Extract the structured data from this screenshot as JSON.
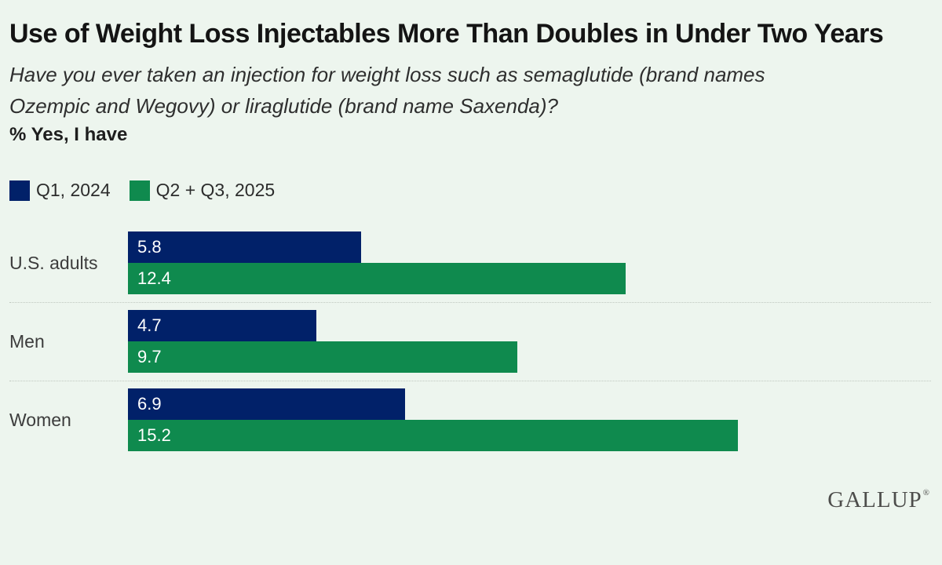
{
  "header": {
    "title": "Use of Weight Loss Injectables More Than Doubles in Under Two Years",
    "subtitle": "Have you ever taken an injection for weight loss such as semaglutide (brand names Ozempic and Wegovy) or liraglutide (brand name Saxenda)?",
    "metric_label": "% Yes, I have"
  },
  "legend": {
    "items": [
      {
        "label": "Q1, 2024",
        "color": "#012169"
      },
      {
        "label": "Q2 + Q3, 2025",
        "color": "#0f8a4e"
      }
    ]
  },
  "chart_data": {
    "type": "bar",
    "orientation": "horizontal",
    "title": "Use of Weight Loss Injectables More Than Doubles in Under Two Years",
    "categories": [
      "U.S. adults",
      "Men",
      "Women"
    ],
    "series": [
      {
        "name": "Q1, 2024",
        "color": "#012169",
        "values": [
          5.8,
          4.7,
          6.9
        ]
      },
      {
        "name": "Q2 + Q3, 2025",
        "color": "#0f8a4e",
        "values": [
          12.4,
          9.7,
          15.2
        ]
      }
    ],
    "xlim": [
      0,
      20
    ],
    "xlabel": "",
    "ylabel": "",
    "grid": false,
    "value_labels": "inside-left",
    "legend_position": "top-left"
  },
  "footer": {
    "logo": "GALLUP",
    "registered_mark": "®"
  },
  "colors": {
    "background": "#edf5ee",
    "divider": "#bfc8bf",
    "value_label_text": "#ffffff"
  }
}
